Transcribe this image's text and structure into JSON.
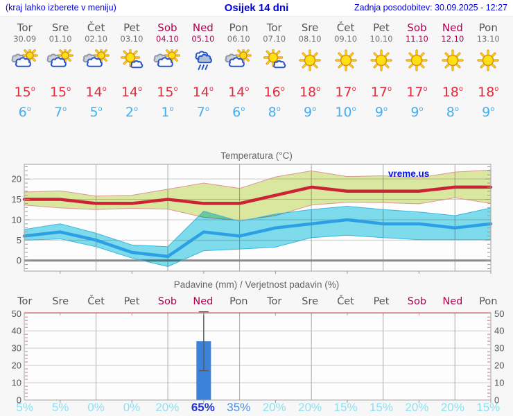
{
  "header": {
    "left_note": "(kraj lahko izberete v meniju)",
    "title": "Osijek 14 dni",
    "updated": "Zadnja posodobitev: 30.09.2025 - 12:27"
  },
  "symbols": {
    "degree": "o"
  },
  "forecast": {
    "days": [
      {
        "name": "Tor",
        "date": "30.09",
        "weekend": false,
        "icon": "partly-cloudy",
        "tmax": 15,
        "tmin": 6
      },
      {
        "name": "Sre",
        "date": "01.10",
        "weekend": false,
        "icon": "partly-cloudy",
        "tmax": 15,
        "tmin": 7
      },
      {
        "name": "Čet",
        "date": "02.10",
        "weekend": false,
        "icon": "partly-cloudy",
        "tmax": 14,
        "tmin": 5
      },
      {
        "name": "Pet",
        "date": "03.10",
        "weekend": false,
        "icon": "mostly-sunny",
        "tmax": 14,
        "tmin": 2
      },
      {
        "name": "Sob",
        "date": "04.10",
        "weekend": true,
        "icon": "partly-cloudy",
        "tmax": 15,
        "tmin": 1
      },
      {
        "name": "Ned",
        "date": "05.10",
        "weekend": true,
        "icon": "rain",
        "tmax": 14,
        "tmin": 7
      },
      {
        "name": "Pon",
        "date": "06.10",
        "weekend": false,
        "icon": "partly-cloudy",
        "tmax": 14,
        "tmin": 6
      },
      {
        "name": "Tor",
        "date": "07.10",
        "weekend": false,
        "icon": "mostly-sunny",
        "tmax": 16,
        "tmin": 8
      },
      {
        "name": "Sre",
        "date": "08.10",
        "weekend": false,
        "icon": "sunny",
        "tmax": 18,
        "tmin": 9
      },
      {
        "name": "Čet",
        "date": "09.10",
        "weekend": false,
        "icon": "sunny",
        "tmax": 17,
        "tmin": 10
      },
      {
        "name": "Pet",
        "date": "10.10",
        "weekend": false,
        "icon": "sunny",
        "tmax": 17,
        "tmin": 9
      },
      {
        "name": "Sob",
        "date": "11.10",
        "weekend": true,
        "icon": "sunny",
        "tmax": 17,
        "tmin": 9
      },
      {
        "name": "Ned",
        "date": "12.10",
        "weekend": true,
        "icon": "sunny",
        "tmax": 18,
        "tmin": 8
      },
      {
        "name": "Pon",
        "date": "13.10",
        "weekend": false,
        "icon": "sunny",
        "tmax": 18,
        "tmin": 9
      }
    ]
  },
  "chart_data": [
    {
      "type": "line",
      "title": "Temperatura (°C)",
      "watermark": "vreme.us",
      "x_labels": [
        "Tor 30.09",
        "Sre 01.10",
        "Čet 02.10",
        "Pet 03.10",
        "Sob 04.10",
        "Ned 05.10",
        "Pon 06.10",
        "Tor 07.10",
        "Sre 08.10",
        "Čet 09.10",
        "Pet 10.10",
        "Sob 11.10",
        "Ned 12.10",
        "Pon 13.10"
      ],
      "ylim": [
        -2.6,
        23.6
      ],
      "yticks": [
        0,
        5,
        10,
        15,
        20
      ],
      "zero_line": true,
      "grid": "every-other-day",
      "series": [
        {
          "name": "max-temp",
          "color": "#cc2236",
          "width": 4.5,
          "values": [
            15,
            15,
            14,
            14,
            15,
            14,
            14,
            16,
            18,
            17,
            17,
            17,
            18,
            18
          ]
        },
        {
          "name": "min-temp",
          "color": "#2d9fe4",
          "width": 4.5,
          "values": [
            6,
            7,
            5,
            2,
            1,
            7,
            6,
            8,
            9,
            10,
            9,
            9,
            8,
            9
          ]
        }
      ],
      "bands": [
        {
          "name": "max-temp-range",
          "fill": "#dce9a0",
          "edge": "#e09595",
          "upper": [
            16.8,
            17.1,
            15.8,
            16.0,
            17.5,
            19.0,
            17.7,
            20.5,
            22.0,
            20.6,
            20.8,
            20.3,
            21.7,
            22.2
          ],
          "lower": [
            13.6,
            12.9,
            12.5,
            12.8,
            12.6,
            10.6,
            9.8,
            11.0,
            13.6,
            14.3,
            14.2,
            13.9,
            15.4,
            14.0
          ]
        },
        {
          "name": "min-temp-range",
          "fill": "#7edded",
          "edge": "#38b7e0",
          "upper": [
            7.6,
            9.0,
            6.7,
            3.8,
            3.4,
            12.1,
            9.6,
            11.4,
            12.5,
            13.3,
            12.5,
            11.9,
            11.0,
            12.9
          ],
          "lower": [
            5.0,
            5.3,
            3.4,
            0.6,
            -1.5,
            2.4,
            2.8,
            3.3,
            5.6,
            6.2,
            5.6,
            5.1,
            5.1,
            5.1
          ]
        }
      ]
    },
    {
      "type": "bar",
      "title": "Padavine (mm) / Verjetnost padavin (%)",
      "categories": [
        "Tor",
        "Sre",
        "Čet",
        "Pet",
        "Sob",
        "Ned",
        "Pon",
        "Tor",
        "Sre",
        "Čet",
        "Pet",
        "Sob",
        "Ned",
        "Pon"
      ],
      "values_mm": [
        0,
        0,
        0,
        0,
        0,
        34,
        0,
        0,
        0,
        0,
        0,
        0,
        0,
        0
      ],
      "whisker": {
        "day_index": 5,
        "low": 17,
        "high": 51
      },
      "bar_color": "#3b82d8",
      "ylim": [
        0,
        50.5
      ],
      "yticks": [
        0,
        10,
        20,
        30,
        40,
        50
      ],
      "probabilities": [
        {
          "label": "5%",
          "tone": "faint"
        },
        {
          "label": "5%",
          "tone": "faint"
        },
        {
          "label": "0%",
          "tone": "faint"
        },
        {
          "label": "0%",
          "tone": "faint"
        },
        {
          "label": "20%",
          "tone": "faint"
        },
        {
          "label": "65%",
          "tone": "strong"
        },
        {
          "label": "35%",
          "tone": "medium"
        },
        {
          "label": "20%",
          "tone": "faint"
        },
        {
          "label": "20%",
          "tone": "faint"
        },
        {
          "label": "15%",
          "tone": "faint"
        },
        {
          "label": "15%",
          "tone": "faint"
        },
        {
          "label": "20%",
          "tone": "faint"
        },
        {
          "label": "20%",
          "tone": "faint"
        },
        {
          "label": "15%",
          "tone": "faint"
        }
      ]
    }
  ],
  "colors": {
    "header_blue": "#0000dd",
    "weekend": "#b0004d",
    "temp_hot": "#e22b3d",
    "temp_cold": "#42aef2",
    "prob_faint": "#8ce0f2",
    "prob_medium": "#4d8fe0",
    "prob_strong": "#2433cc"
  }
}
